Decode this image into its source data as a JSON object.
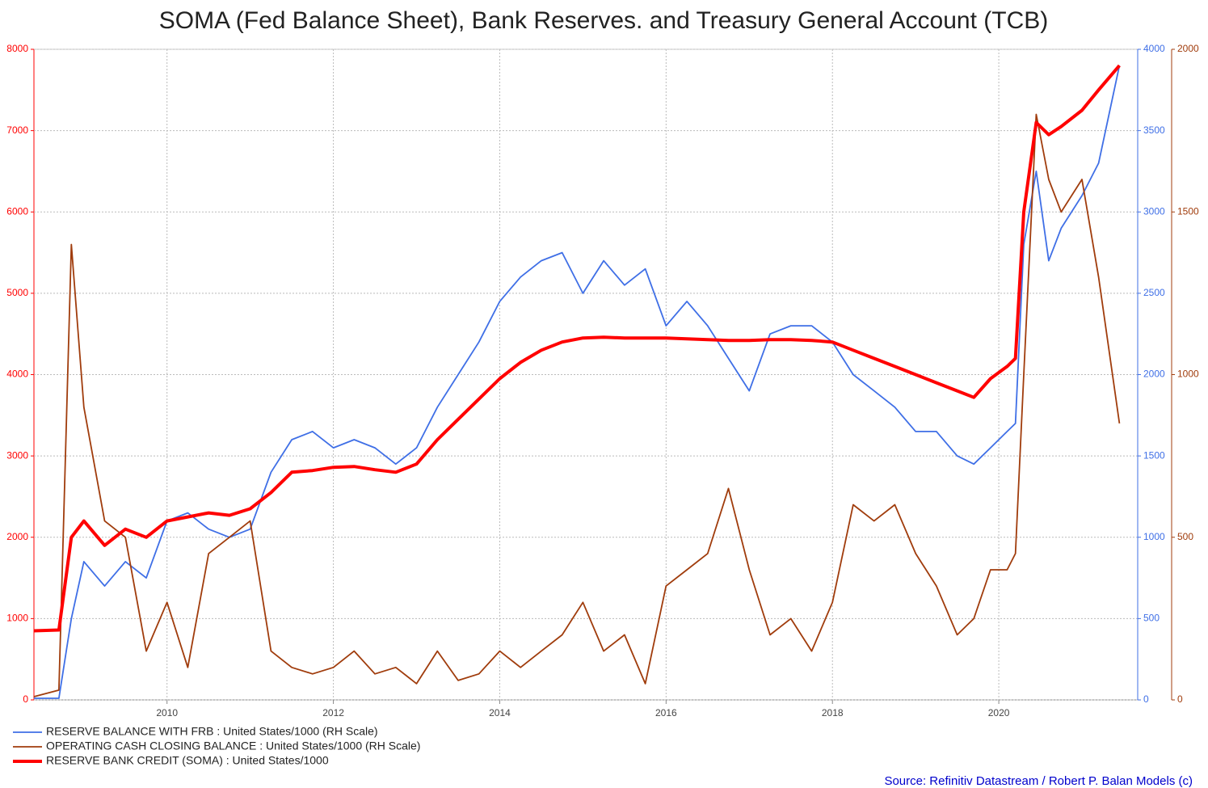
{
  "chart_data": {
    "type": "line",
    "title": "SOMA (Fed Balance Sheet), Bank Reserves. and Treasury General Account (TCB)",
    "source": "Source: Refinitiv Datastream / Robert P. Balan Models (c)",
    "x": [
      2008.4,
      2008.7,
      2008.85,
      2009.0,
      2009.25,
      2009.5,
      2009.75,
      2010.0,
      2010.25,
      2010.5,
      2010.75,
      2011.0,
      2011.25,
      2011.5,
      2011.75,
      2012.0,
      2012.25,
      2012.5,
      2012.75,
      2013.0,
      2013.25,
      2013.5,
      2013.75,
      2014.0,
      2014.25,
      2014.5,
      2014.75,
      2015.0,
      2015.25,
      2015.5,
      2015.75,
      2016.0,
      2016.25,
      2016.5,
      2016.75,
      2017.0,
      2017.25,
      2017.5,
      2017.75,
      2018.0,
      2018.25,
      2018.5,
      2018.75,
      2019.0,
      2019.25,
      2019.5,
      2019.7,
      2019.9,
      2020.1,
      2020.2,
      2020.3,
      2020.45,
      2020.6,
      2020.75,
      2021.0,
      2021.2,
      2021.45
    ],
    "xlim": [
      2008.4,
      2021.67
    ],
    "xticks": [
      2010,
      2012,
      2014,
      2016,
      2018,
      2020
    ],
    "ylim": [
      0,
      8000
    ],
    "yticks": [
      0,
      1000,
      2000,
      3000,
      4000,
      5000,
      6000,
      7000,
      8000
    ],
    "y2lim": [
      0,
      4000
    ],
    "y2ticks": [
      0,
      500,
      1000,
      1500,
      2000,
      2500,
      3000,
      3500,
      4000
    ],
    "y3lim": [
      0,
      2000
    ],
    "y3ticks": [
      0,
      500,
      1000,
      1500,
      2000
    ],
    "grid": true,
    "series": [
      {
        "name": "RESERVE BALANCE WITH FRB : United States/1000 (RH Scale)",
        "color": "#3f6fe6",
        "axis": "y2",
        "values": [
          10,
          10,
          500,
          850,
          700,
          850,
          750,
          1100,
          1150,
          1050,
          1000,
          1050,
          1400,
          1600,
          1650,
          1550,
          1600,
          1550,
          1450,
          1550,
          1800,
          2000,
          2200,
          2450,
          2600,
          2700,
          2750,
          2500,
          2700,
          2550,
          2650,
          2300,
          2450,
          2300,
          2100,
          1900,
          2250,
          2300,
          2300,
          2200,
          2000,
          1900,
          1800,
          1650,
          1650,
          1500,
          1450,
          1550,
          1650,
          1700,
          2800,
          3250,
          2700,
          2900,
          3100,
          3300,
          3900
        ]
      },
      {
        "name": "OPERATING CASH CLOSING BALANCE : United States/1000 (RH Scale)",
        "color": "#a03c0c",
        "axis": "y3",
        "values": [
          10,
          30,
          1400,
          900,
          550,
          500,
          150,
          300,
          100,
          450,
          500,
          550,
          150,
          100,
          80,
          100,
          150,
          80,
          100,
          50,
          150,
          60,
          80,
          150,
          100,
          150,
          200,
          300,
          150,
          200,
          50,
          350,
          400,
          450,
          650,
          400,
          200,
          250,
          150,
          300,
          600,
          550,
          600,
          450,
          350,
          200,
          250,
          400,
          400,
          450,
          1000,
          1800,
          1600,
          1500,
          1600,
          1300,
          850
        ]
      },
      {
        "name": "RESERVE BANK CREDIT (SOMA) : United States/1000",
        "color": "#ff0000",
        "axis": "y",
        "values": [
          850,
          860,
          2000,
          2200,
          1900,
          2100,
          2000,
          2200,
          2250,
          2300,
          2270,
          2350,
          2550,
          2800,
          2820,
          2860,
          2870,
          2830,
          2800,
          2900,
          3200,
          3450,
          3700,
          3950,
          4150,
          4300,
          4400,
          4450,
          4460,
          4450,
          4450,
          4450,
          4440,
          4430,
          4420,
          4420,
          4430,
          4430,
          4420,
          4400,
          4300,
          4200,
          4100,
          4000,
          3900,
          3800,
          3720,
          3950,
          4100,
          4200,
          6000,
          7100,
          6950,
          7050,
          7250,
          7500,
          7800
        ]
      }
    ]
  }
}
